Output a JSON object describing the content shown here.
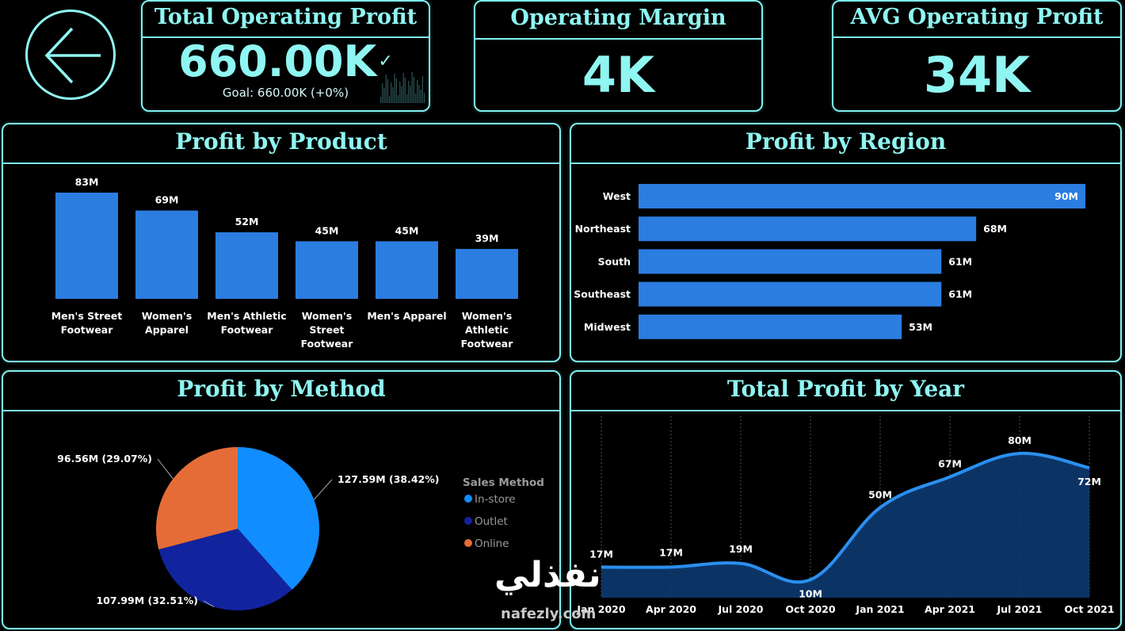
{
  "colors": {
    "accent": "#8ff6f2",
    "bar": "#2b7de0",
    "in_store": "#118dff",
    "outlet": "#12239e",
    "online": "#e66c37",
    "area_line": "#2b8ff0",
    "area_fill": "#0c3a70"
  },
  "nav": {
    "back_icon": "arrow-left-icon"
  },
  "kpis": {
    "total_operating_profit": {
      "title": "Total Operating Profit",
      "value": "660.00K",
      "check": "✓",
      "goal": "Goal: 660.00K (+0%)"
    },
    "operating_margin": {
      "title": "Operating Margin",
      "value": "4K"
    },
    "avg_operating_profit": {
      "title": "AVG Operating Profit",
      "value": "34K"
    }
  },
  "profit_by_product": {
    "title": "Profit by Product",
    "chart_data": {
      "type": "bar",
      "categories": [
        [
          "Men's Street",
          "Footwear"
        ],
        [
          "Women's",
          "Apparel"
        ],
        [
          "Men's Athletic",
          "Footwear"
        ],
        [
          "Women's",
          "Street",
          "Footwear"
        ],
        [
          "Men's Apparel"
        ],
        [
          "Women's",
          "Athletic",
          "Footwear"
        ]
      ],
      "values": [
        83,
        69,
        52,
        45,
        45,
        39
      ],
      "data_labels": [
        "83M",
        "69M",
        "52M",
        "45M",
        "45M",
        "39M"
      ],
      "ylim": [
        0,
        83
      ]
    }
  },
  "profit_by_region": {
    "title": "Profit by Region",
    "chart_data": {
      "type": "bar",
      "orientation": "horizontal",
      "categories": [
        "West",
        "Northeast",
        "South",
        "Southeast",
        "Midwest"
      ],
      "values": [
        90,
        68,
        61,
        61,
        53
      ],
      "data_labels": [
        "90M",
        "68M",
        "61M",
        "61M",
        "53M"
      ],
      "xlim": [
        0,
        90
      ]
    }
  },
  "profit_by_method": {
    "title": "Profit by Method",
    "chart_data": {
      "type": "pie",
      "legend_title": "Sales Method",
      "slices": [
        {
          "name": "In-store",
          "value": 127.59,
          "label": "127.59M (38.42%)"
        },
        {
          "name": "Outlet",
          "value": 107.99,
          "label": "107.99M (32.51%)"
        },
        {
          "name": "Online",
          "value": 96.56,
          "label": "96.56M (29.07%)"
        }
      ],
      "legend_placement": "right"
    }
  },
  "total_profit_by_year": {
    "title": "Total Profit by Year",
    "chart_data": {
      "type": "area",
      "x": [
        "Jan 2020",
        "Apr 2020",
        "Jul 2020",
        "Oct 2020",
        "Jan 2021",
        "Apr 2021",
        "Jul 2021",
        "Oct 2021"
      ],
      "values": [
        17,
        17,
        19,
        10,
        50,
        67,
        80,
        72
      ],
      "data_labels": [
        "17M",
        "17M",
        "19M",
        "10M",
        "50M",
        "67M",
        "80M",
        "72M"
      ],
      "ylim": [
        0,
        80
      ],
      "grid": "vertical-dotted"
    }
  },
  "watermark": {
    "arabic": "نفذلي",
    "latin": "nafezly.com"
  }
}
